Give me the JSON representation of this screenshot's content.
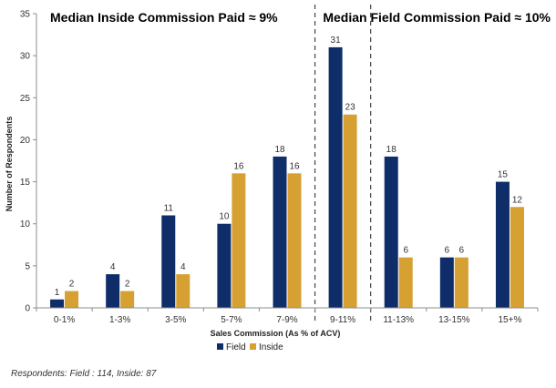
{
  "chart_data": {
    "type": "bar",
    "categories": [
      "0-1%",
      "1-3%",
      "3-5%",
      "5-7%",
      "7-9%",
      "9-11%",
      "11-13%",
      "13-15%",
      "15+%"
    ],
    "series": [
      {
        "name": "Field",
        "color": "#0f2d69",
        "values": [
          1,
          4,
          11,
          10,
          18,
          31,
          18,
          6,
          15
        ]
      },
      {
        "name": "Inside",
        "color": "#d6a032",
        "values": [
          2,
          2,
          4,
          16,
          16,
          23,
          6,
          6,
          12
        ]
      }
    ],
    "xlabel": "Sales Commission (As % of ACV)",
    "ylabel": "Number of Respondents",
    "ylim": [
      0,
      35
    ],
    "yticks": [
      0,
      5,
      10,
      15,
      20,
      25,
      30,
      35
    ],
    "highlight_category": "9-11%",
    "legend_position": "bottom-center",
    "annotations": [
      {
        "text": "Median Inside Commission  Paid ≈ 9%",
        "color": "#d6a032"
      },
      {
        "text": "Median Field Commission  Paid ≈ 10%",
        "color": "#0f2d69"
      }
    ]
  },
  "footnote": "Respondents: Field : 114, Inside: 87"
}
